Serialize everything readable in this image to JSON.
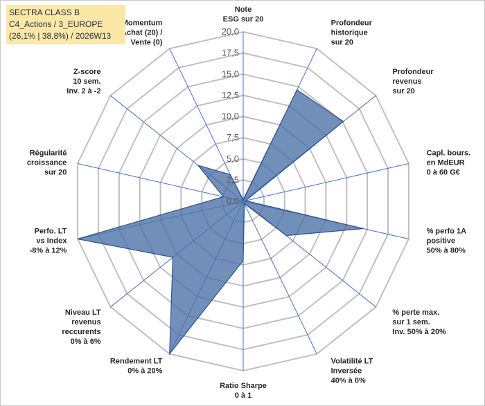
{
  "title": {
    "line1": "SECTRA CLASS B",
    "line2": "C4_Actions / 3_EUROPE",
    "line3": "(26,1% | 38,8%) / 2026W13"
  },
  "colors": {
    "grid": "#bfbfbf",
    "spoke": "#4472c4",
    "series_fill": "#4a6fa5",
    "series_stroke": "#2f528f",
    "title_bg": "#fbe7a6"
  },
  "chart_data": {
    "type": "radar",
    "rmin": 0,
    "rmax": 20,
    "tick_step": 2.5,
    "tick_labels": [
      "0,0",
      "2,5",
      "5,0",
      "7,5",
      "10,0",
      "12,5",
      "15,0",
      "17,5",
      "20,0"
    ],
    "categories": [
      [
        "Note",
        "ESG sur 20"
      ],
      [
        "Profondeur",
        "historique",
        "sur 20"
      ],
      [
        "Profondeur",
        "revenus",
        "sur 20"
      ],
      [
        "Capl. bours.",
        "en MdEUR",
        "0 à 60 G€"
      ],
      [
        "% perfo 1A",
        "positive",
        "50% à 80%"
      ],
      [
        "% perte max.",
        "sur 1 sem.",
        "Inv. 50% à 20%"
      ],
      [
        "Volatilité LT",
        "Inversée",
        "40% à 0%"
      ],
      [
        "Ratio Sharpe",
        "0 à 1"
      ],
      [
        "Rendement LT",
        "0% à 20%"
      ],
      [
        "Niveau LT",
        "revenus",
        "reccurents",
        "0% à 6%"
      ],
      [
        "Perfo. LT",
        "vs Index",
        "-8% à 12%"
      ],
      [
        "Régularité",
        "croissance",
        "sur 20"
      ],
      [
        "Z-score",
        "10 sem.",
        "Inv. 2 à -2"
      ],
      [
        "Momentum",
        "Achat (20) /",
        "Vente (0)"
      ]
    ],
    "series": [
      {
        "name": "SECTRA CLASS B",
        "values": [
          0.2,
          14.6,
          15.1,
          0.3,
          14.5,
          6.5,
          0.3,
          7.0,
          20.0,
          10.6,
          20.0,
          2.4,
          6.8,
          3.5
        ]
      }
    ]
  }
}
